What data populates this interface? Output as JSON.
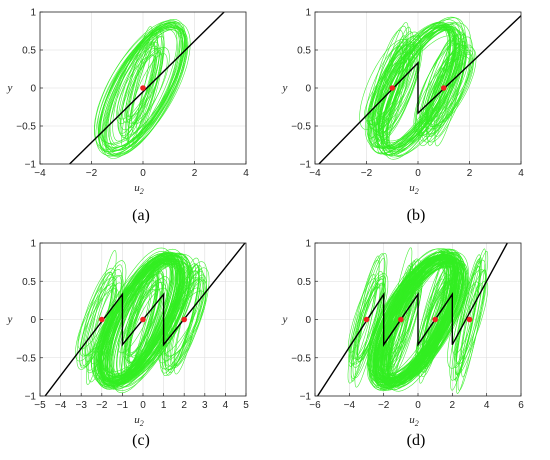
{
  "colors": {
    "trajectory": "#33ee22",
    "staircase": "#000000",
    "equilibrium": "#ee2222",
    "grid": "#dedede",
    "axis": "#262626"
  },
  "chart_data": [
    {
      "type": "line",
      "caption": "(a)",
      "xlabel": "u",
      "xlabel_sub": "2",
      "ylabel": "y",
      "xlim": [
        -4,
        4
      ],
      "ylim": [
        -1,
        1
      ],
      "xticks": [
        -4,
        -2,
        0,
        2,
        4
      ],
      "xtick_labels": [
        "−4",
        "−2",
        "0",
        "2",
        "4"
      ],
      "yticks": [
        -1,
        -0.5,
        0,
        0.5,
        1
      ],
      "ytick_labels": [
        "−1",
        "−0.5",
        "0",
        "0.5",
        "1"
      ],
      "grid": true,
      "equilibria": [
        {
          "x": 0,
          "y": 0
        }
      ],
      "staircase": [
        [
          -2.85,
          -1
        ],
        [
          3.15,
          1
        ]
      ],
      "attractor_centers": [
        0
      ],
      "attractor_halfwidth": 0.85
    },
    {
      "type": "line",
      "caption": "(b)",
      "xlabel": "u",
      "xlabel_sub": "2",
      "ylabel": "y",
      "xlim": [
        -4,
        4
      ],
      "ylim": [
        -1,
        1
      ],
      "xticks": [
        -4,
        -2,
        0,
        2,
        4
      ],
      "xtick_labels": [
        "−4",
        "−2",
        "0",
        "2",
        "4"
      ],
      "yticks": [
        -1,
        -0.5,
        0,
        0.5,
        1
      ],
      "ytick_labels": [
        "−1",
        "−0.5",
        "0",
        "0.5",
        "1"
      ],
      "grid": true,
      "equilibria": [
        {
          "x": -1,
          "y": 0
        },
        {
          "x": 1,
          "y": 0
        }
      ],
      "staircase": [
        [
          -3.85,
          -1
        ],
        [
          0,
          0.33
        ],
        [
          0,
          -0.33
        ],
        [
          4.15,
          1
        ]
      ],
      "attractor_centers": [
        -1,
        1
      ],
      "attractor_halfwidth": 0.95
    },
    {
      "type": "line",
      "caption": "(c)",
      "xlabel": "u",
      "xlabel_sub": "2",
      "ylabel": "y",
      "xlim": [
        -5,
        5
      ],
      "ylim": [
        -1,
        1
      ],
      "xticks": [
        -5,
        -4,
        -3,
        -2,
        -1,
        0,
        1,
        2,
        3,
        4,
        5
      ],
      "xtick_labels": [
        "−5",
        "−4",
        "−3",
        "−2",
        "−1",
        "0",
        "1",
        "2",
        "3",
        "4",
        "5"
      ],
      "yticks": [
        -1,
        -0.5,
        0,
        0.5,
        1
      ],
      "ytick_labels": [
        "−1",
        "−0.5",
        "0",
        "0.5",
        "1"
      ],
      "grid": true,
      "equilibria": [
        {
          "x": -2,
          "y": 0
        },
        {
          "x": 0,
          "y": 0
        },
        {
          "x": 2,
          "y": 0
        }
      ],
      "staircase": [
        [
          -4.75,
          -1
        ],
        [
          -1,
          0.33
        ],
        [
          -1,
          -0.33
        ],
        [
          1,
          0.33
        ],
        [
          1,
          -0.33
        ],
        [
          4.95,
          1
        ]
      ],
      "attractor_centers": [
        -2,
        0,
        2
      ],
      "attractor_halfwidth": 1.0
    },
    {
      "type": "line",
      "caption": "(d)",
      "xlabel": "u",
      "xlabel_sub": "2",
      "ylabel": "y",
      "xlim": [
        -6,
        6
      ],
      "ylim": [
        -1,
        1
      ],
      "xticks": [
        -6,
        -4,
        -2,
        0,
        2,
        4,
        6
      ],
      "xtick_labels": [
        "−6",
        "−4",
        "−2",
        "0",
        "2",
        "4",
        "6"
      ],
      "yticks": [
        -1,
        -0.5,
        0,
        0.5,
        1
      ],
      "ytick_labels": [
        "−1",
        "−0.5",
        "0",
        "0.5",
        "1"
      ],
      "grid": true,
      "equilibria": [
        {
          "x": -3,
          "y": 0
        },
        {
          "x": -1,
          "y": 0
        },
        {
          "x": 1,
          "y": 0
        },
        {
          "x": 3,
          "y": 0
        }
      ],
      "staircase": [
        [
          -5.85,
          -1
        ],
        [
          -2,
          0.33
        ],
        [
          -2,
          -0.33
        ],
        [
          0,
          0.33
        ],
        [
          0,
          -0.33
        ],
        [
          2,
          0.33
        ],
        [
          2,
          -0.33
        ],
        [
          5.2,
          1
        ]
      ],
      "attractor_centers": [
        -3,
        -1,
        1,
        3
      ],
      "attractor_halfwidth": 1.0
    }
  ]
}
